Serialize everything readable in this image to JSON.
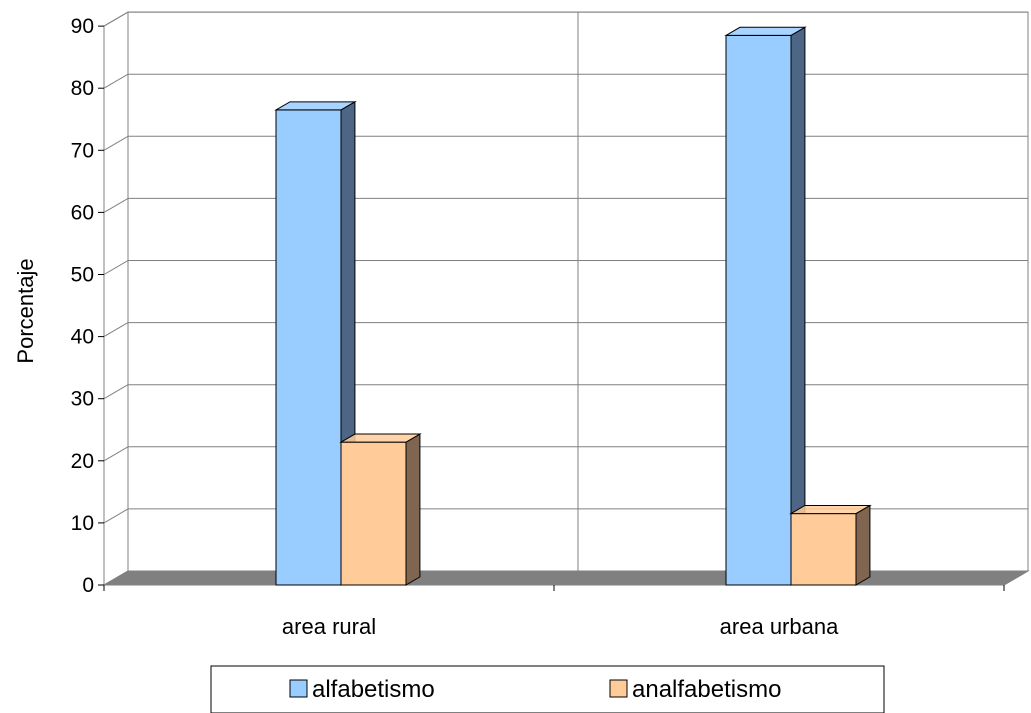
{
  "chart_data": {
    "type": "bar",
    "style": "3d-clustered-column",
    "categories": [
      "area rural",
      "area urbana"
    ],
    "series": [
      {
        "name": "alfabetismo",
        "values": [
          76.5,
          88.5
        ],
        "color": "#99ccff",
        "side_color": "#4d6685"
      },
      {
        "name": "analfabetismo",
        "values": [
          23.0,
          11.5
        ],
        "color": "#ffcc99",
        "side_color": "#806650"
      }
    ],
    "yticks": [
      0,
      10,
      20,
      30,
      40,
      50,
      60,
      70,
      80,
      90
    ],
    "ylim": [
      0,
      90
    ],
    "ylabel": "Porcentaje",
    "xlabel": "",
    "grid": true,
    "legend_position": "bottom",
    "floor_color": "#808080"
  }
}
